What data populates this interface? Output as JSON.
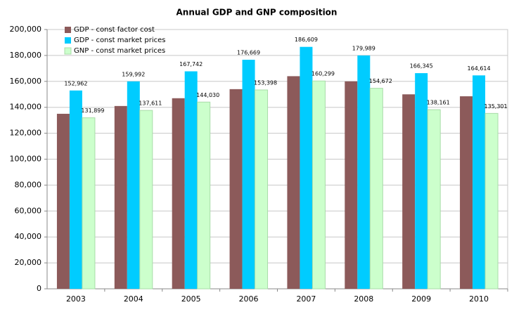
{
  "chart_data": {
    "type": "bar",
    "title": "Annual GDP and GNP composition",
    "categories": [
      "2003",
      "2004",
      "2005",
      "2006",
      "2007",
      "2008",
      "2009",
      "2010"
    ],
    "series": [
      {
        "name": "GDP - const factor cost",
        "color": "#8c5a5a",
        "values": [
          135000,
          141000,
          147000,
          154000,
          164000,
          160000,
          150000,
          148500
        ]
      },
      {
        "name": "GDP - const market prices",
        "color": "#00ccff",
        "values": [
          152962,
          159992,
          167742,
          176669,
          186609,
          179989,
          166345,
          164614
        ],
        "value_labels": [
          "152,962",
          "159,992",
          "167,742",
          "176,669",
          "186,609",
          "179,989",
          "166,345",
          "164,614"
        ]
      },
      {
        "name": "GNP - const market prices",
        "color": "#ccffcc",
        "values": [
          131899,
          137611,
          144030,
          153398,
          160299,
          154672,
          138161,
          135301
        ],
        "value_labels": [
          "131,899",
          "137,611",
          "144,030",
          "153,398",
          "160,299",
          "154,672",
          "138,161",
          "135,301"
        ]
      }
    ],
    "ylim": [
      0,
      200000
    ],
    "yticks": [
      0,
      {
        "value": 20000,
        "label": "20,000"
      },
      {
        "value": 40000,
        "label": "40,000"
      },
      {
        "value": 60000,
        "label": "60,000"
      },
      {
        "value": 80000,
        "label": "80,000"
      },
      {
        "value": 100000,
        "label": "100,000"
      },
      {
        "value": 120000,
        "label": "120,000"
      },
      {
        "value": 140000,
        "label": "140,000"
      },
      {
        "value": 160000,
        "label": "160,000"
      },
      {
        "value": 180000,
        "label": "180,000"
      },
      {
        "value": 200000,
        "label": "200,000"
      }
    ],
    "grid": true,
    "legend": "top-left"
  }
}
